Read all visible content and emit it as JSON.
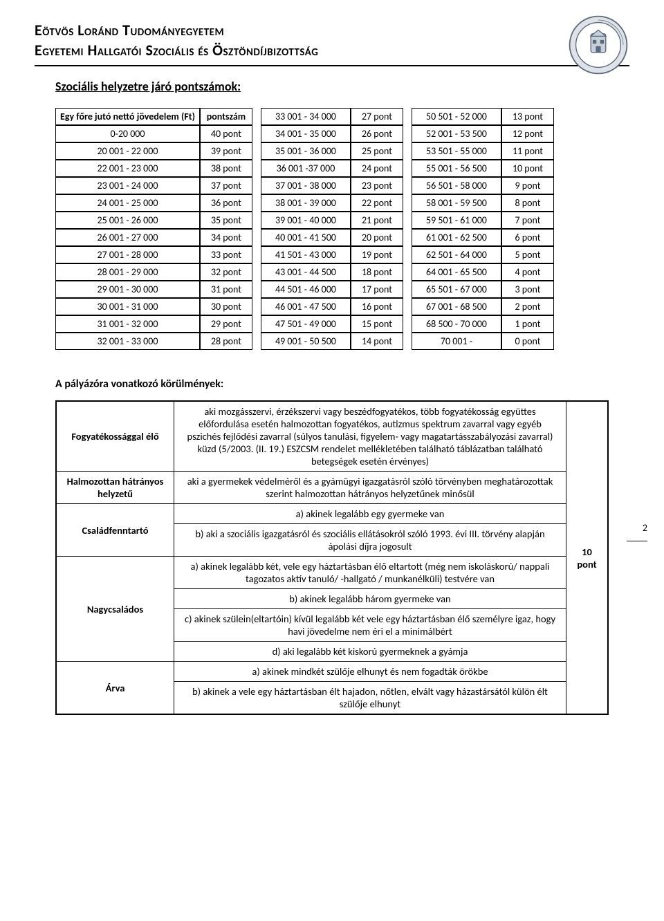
{
  "header": {
    "line1": "Eötvös Loránd Tudományegyetem",
    "line2": "Egyetemi Hallgatói Szociális és Ösztöndíjbizottság"
  },
  "page_number": "2",
  "section_title": "Szociális helyzetre járó pontszámok:",
  "points_table": {
    "header_range": "Egy főre jutó nettó jövedelem (Ft)",
    "header_points": "pontszám",
    "columns": [
      [
        {
          "range": "0-20 000",
          "pts": "40 pont"
        },
        {
          "range": "20 001 - 22 000",
          "pts": "39 pont"
        },
        {
          "range": "22 001 - 23 000",
          "pts": "38 pont"
        },
        {
          "range": "23 001 - 24 000",
          "pts": "37 pont"
        },
        {
          "range": "24 001 - 25 000",
          "pts": "36 pont"
        },
        {
          "range": "25 001 - 26 000",
          "pts": "35 pont"
        },
        {
          "range": "26 001 - 27 000",
          "pts": "34 pont"
        },
        {
          "range": "27 001 - 28 000",
          "pts": "33 pont"
        },
        {
          "range": "28 001 - 29 000",
          "pts": "32 pont"
        },
        {
          "range": "29 001 - 30 000",
          "pts": "31 pont"
        },
        {
          "range": "30 001 - 31 000",
          "pts": "30 pont"
        },
        {
          "range": "31 001 - 32 000",
          "pts": "29 pont"
        },
        {
          "range": "32 001 - 33 000",
          "pts": "28 pont"
        }
      ],
      [
        {
          "range": "33 001 - 34 000",
          "pts": "27 pont"
        },
        {
          "range": "34 001 - 35 000",
          "pts": "26 pont"
        },
        {
          "range": "35 001 - 36 000",
          "pts": "25 pont"
        },
        {
          "range": "36 001 -37 000",
          "pts": "24 pont"
        },
        {
          "range": "37 001 - 38 000",
          "pts": "23 pont"
        },
        {
          "range": "38 001 - 39 000",
          "pts": "22 pont"
        },
        {
          "range": "39 001 - 40 000",
          "pts": "21 pont"
        },
        {
          "range": "40 001 - 41 500",
          "pts": "20 pont"
        },
        {
          "range": "41 501 - 43 000",
          "pts": "19 pont"
        },
        {
          "range": "43 001 - 44 500",
          "pts": "18 pont"
        },
        {
          "range": "44 501 - 46 000",
          "pts": "17 pont"
        },
        {
          "range": "46 001 - 47 500",
          "pts": "16 pont"
        },
        {
          "range": "47 501 - 49 000",
          "pts": "15 pont"
        },
        {
          "range": "49 001 - 50 500",
          "pts": "14 pont"
        }
      ],
      [
        {
          "range": "50 501 - 52 000",
          "pts": "13 pont"
        },
        {
          "range": "52 001 - 53 500",
          "pts": "12 pont"
        },
        {
          "range": "53 501 - 55 000",
          "pts": "11 pont"
        },
        {
          "range": "55 001 - 56 500",
          "pts": "10 pont"
        },
        {
          "range": "56 501 - 58 000",
          "pts": "9 pont"
        },
        {
          "range": "58 001 - 59 500",
          "pts": "8 pont"
        },
        {
          "range": "59 501 - 61 000",
          "pts": "7 pont"
        },
        {
          "range": "61 001 - 62 500",
          "pts": "6 pont"
        },
        {
          "range": "62 501 - 64 000",
          "pts": "5 pont"
        },
        {
          "range": "64 001 - 65 500",
          "pts": "4 pont"
        },
        {
          "range": "65 501 - 67 000",
          "pts": "3 pont"
        },
        {
          "range": "67 001 - 68 500",
          "pts": "2 pont"
        },
        {
          "range": "68 500 - 70 000",
          "pts": "1 pont"
        },
        {
          "range": "70 001 -",
          "pts": "0 pont"
        }
      ]
    ]
  },
  "subsection_title": "A pályázóra vonatkozó körülmények:",
  "conditions": {
    "points_label": "10 pont",
    "rows": [
      {
        "label": "Fogyatékossággal élő",
        "items": [
          "aki mozgásszervi, érzékszervi vagy beszédfogyatékos, több fogyatékosság együttes előfordulása esetén halmozottan fogyatékos, autizmus spektrum zavarral vagy egyéb pszichés fejlődési zavarral (súlyos tanulási, figyelem- vagy magatartásszabályozási zavarral) küzd (5/2003. (II. 19.) ESZCSM rendelet mellékletében található táblázatban található betegségek esetén érvényes)"
        ]
      },
      {
        "label": "Halmozottan hátrányos helyzetű",
        "items": [
          "aki a gyermekek védelméről és a gyámügyi igazgatásról szóló törvényben meghatározottak szerint halmozottan hátrányos helyzetűnek minősül"
        ]
      },
      {
        "label": "Családfenntartó",
        "items": [
          "a) akinek legalább egy gyermeke van",
          "b) aki a szociális igazgatásról és szociális ellátásokról szóló 1993. évi III. törvény alapján ápolási díjra jogosult"
        ]
      },
      {
        "label": "Nagycsaládos",
        "items": [
          "a) akinek legalább két, vele egy háztartásban élő eltartott (még nem iskoláskorú/ nappali tagozatos aktív tanuló/ -hallgató / munkanélküli) testvére van",
          "b) akinek legalább három gyermeke van",
          "c) akinek szülein(eltartóin) kívül legalább két vele egy háztartásban élő személyre igaz, hogy havi jövedelme nem éri el a minimálbért",
          "d) aki legalább két kiskorú gyermeknek a gyámja"
        ]
      },
      {
        "label": "Árva",
        "items": [
          "a) akinek mindkét szülője elhunyt és nem fogadták örökbe",
          "b) akinek a vele egy háztartásban élt hajadon, nőtlen, elvált vagy házastársától külön élt szülője elhunyt"
        ]
      }
    ]
  },
  "colors": {
    "text": "#000000",
    "border": "#000000",
    "background": "#ffffff",
    "logo_outline": "#5b6a7d",
    "logo_fill": "#dfe3e8"
  }
}
